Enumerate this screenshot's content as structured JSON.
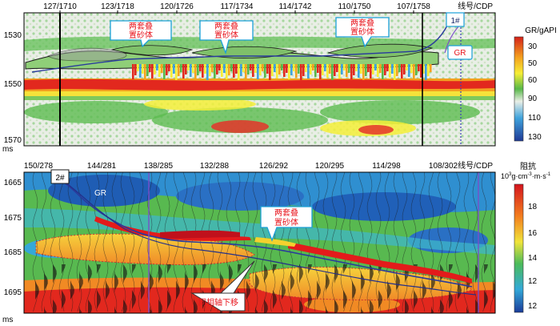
{
  "panel_top": {
    "cdp_ticks": [
      "127/1710",
      "123/1718",
      "120/1726",
      "117/1734",
      "114/1742",
      "110/1750",
      "107/1758"
    ],
    "line_cdp_label": "线号/CDP",
    "time_ticks": [
      "1530",
      "1550",
      "1570"
    ],
    "time_unit": "ms",
    "colorbar_title": "GR/gAPI",
    "colorbar_ticks": [
      "30",
      "50",
      "60",
      "90",
      "110",
      "130"
    ],
    "callouts": [
      "两套叠\n置砂体",
      "两套叠\n置砂体",
      "两套叠\n置砂体"
    ],
    "well_label": "1#",
    "curve_label": "GR"
  },
  "panel_bottom": {
    "cdp_ticks": [
      "150/278",
      "144/281",
      "138/285",
      "132/288",
      "126/292",
      "120/295",
      "114/298",
      "108/302"
    ],
    "line_cdp_label": "线号/CDP",
    "time_ticks": [
      "1665",
      "1675",
      "1685",
      "1695"
    ],
    "time_unit": "ms",
    "colorbar_title": "阻抗",
    "colorbar_unit_prefix": "10",
    "colorbar_unit_sup": "3",
    "colorbar_unit_rest": "g·cm",
    "colorbar_unit_sup2": "-3",
    "colorbar_unit_rest2": "·m·s",
    "colorbar_unit_sup3": "-1",
    "colorbar_ticks": [
      "18",
      "16",
      "14",
      "12",
      "12"
    ],
    "callouts": [
      "两套叠\n置砂体",
      "同相轴下移"
    ],
    "well_label": "2#",
    "curve_label": "GR"
  },
  "colors": {
    "callout_text": "#e8141c",
    "callout_border": "#1aa0d8",
    "gr_curve": "#2a3b9c"
  }
}
